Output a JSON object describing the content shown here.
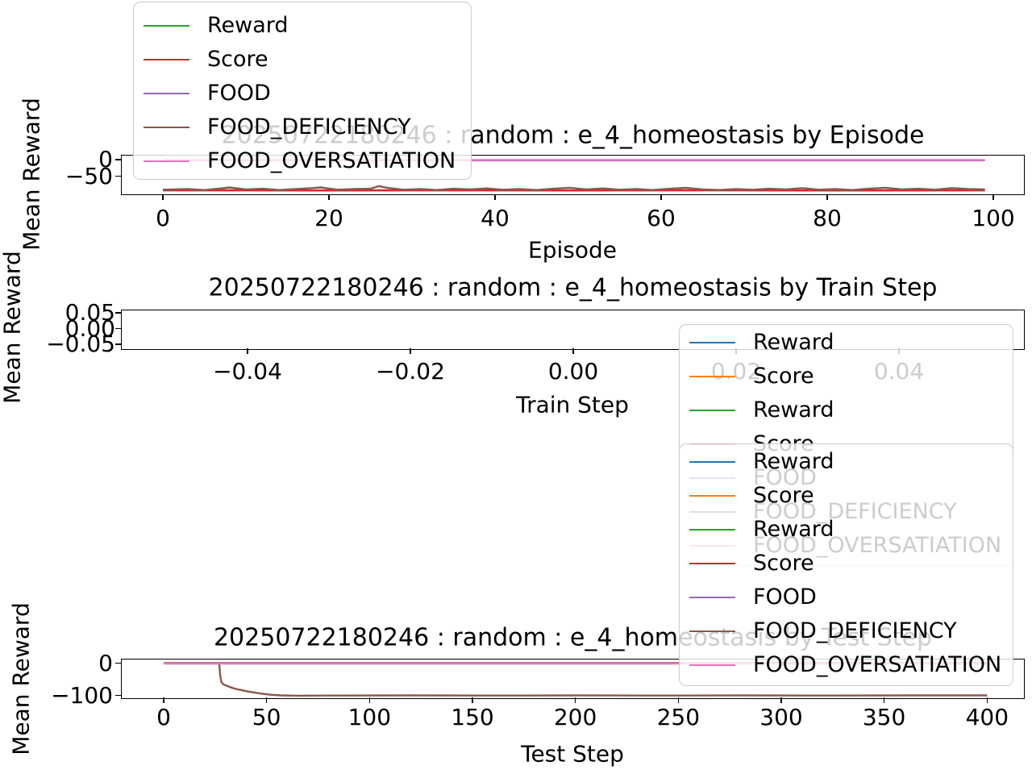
{
  "colors": {
    "blue": "#1f77b4",
    "orange": "#ff7f0e",
    "green": "#2ca02c",
    "red": "#d62728",
    "purple": "#9467bd",
    "brown": "#8c564b",
    "pink": "#e377c2",
    "spine": "#000000",
    "legend_border": "#cbcbcb",
    "faded_text": "#cccccc"
  },
  "chart_data": [
    {
      "type": "line",
      "title": "20250722180246 : random : e_4_homeostasis by Episode",
      "xlabel": "Episode",
      "ylabel": "Mean Reward",
      "xticklabels": [
        "0",
        "20",
        "40",
        "60",
        "80",
        "100"
      ],
      "yticklabels": [
        "0",
        "−50"
      ],
      "xticks": [
        0,
        20,
        40,
        60,
        80,
        100
      ],
      "yticks": [
        0,
        -50
      ],
      "xlim": [
        -5,
        104
      ],
      "ylim": [
        -102,
        12
      ],
      "grid": false,
      "series": [
        {
          "name": "Reward",
          "color": "#2ca02c",
          "points": [
            [
              0,
              -93
            ],
            [
              10,
              -92.5
            ],
            [
              20,
              -93.5
            ],
            [
              30,
              -93
            ],
            [
              40,
              -92.5
            ],
            [
              50,
              -93.5
            ],
            [
              60,
              -93
            ],
            [
              70,
              -92.5
            ],
            [
              80,
              -93.5
            ],
            [
              90,
              -93
            ],
            [
              99,
              -93
            ]
          ]
        },
        {
          "name": "Score",
          "color": "#d62728",
          "points": [
            [
              0,
              -92.6
            ],
            [
              15,
              -93.2
            ],
            [
              30,
              -92.6
            ],
            [
              45,
              -93.2
            ],
            [
              60,
              -92.6
            ],
            [
              75,
              -93.2
            ],
            [
              99,
              -92.8
            ]
          ]
        },
        {
          "name": "FOOD",
          "color": "#9467bd",
          "points": [
            [
              0,
              -2.2
            ],
            [
              99,
              -2.2
            ]
          ]
        },
        {
          "name": "FOOD_DEFICIENCY",
          "color": "#8c564b",
          "points": [
            [
              0,
              -91
            ],
            [
              3,
              -89
            ],
            [
              5,
              -92
            ],
            [
              7,
              -87
            ],
            [
              8,
              -84
            ],
            [
              10,
              -90
            ],
            [
              12,
              -88
            ],
            [
              14,
              -92
            ],
            [
              16,
              -89
            ],
            [
              18,
              -86
            ],
            [
              19,
              -84
            ],
            [
              21,
              -91
            ],
            [
              23,
              -89
            ],
            [
              25,
              -88
            ],
            [
              26,
              -80
            ],
            [
              27,
              -85
            ],
            [
              29,
              -91
            ],
            [
              31,
              -89
            ],
            [
              33,
              -92
            ],
            [
              35,
              -88
            ],
            [
              37,
              -90
            ],
            [
              39,
              -87
            ],
            [
              41,
              -91
            ],
            [
              43,
              -89
            ],
            [
              45,
              -92
            ],
            [
              47,
              -88
            ],
            [
              49,
              -85
            ],
            [
              51,
              -90
            ],
            [
              53,
              -87
            ],
            [
              55,
              -91
            ],
            [
              57,
              -89
            ],
            [
              59,
              -92
            ],
            [
              61,
              -88
            ],
            [
              63,
              -85
            ],
            [
              65,
              -90
            ],
            [
              67,
              -92
            ],
            [
              69,
              -89
            ],
            [
              71,
              -91
            ],
            [
              73,
              -88
            ],
            [
              75,
              -90
            ],
            [
              77,
              -86
            ],
            [
              79,
              -91
            ],
            [
              81,
              -89
            ],
            [
              83,
              -92
            ],
            [
              85,
              -88
            ],
            [
              87,
              -85
            ],
            [
              89,
              -90
            ],
            [
              91,
              -88
            ],
            [
              93,
              -91
            ],
            [
              95,
              -86
            ],
            [
              97,
              -89
            ],
            [
              99,
              -90
            ]
          ]
        },
        {
          "name": "FOOD_OVERSATIATION",
          "color": "#e377c2",
          "points": [
            [
              0,
              -1
            ],
            [
              99,
              -1
            ]
          ]
        }
      ]
    },
    {
      "type": "line",
      "title": "20250722180246 : random : e_4_homeostasis by Train Step",
      "xlabel": "Train Step",
      "ylabel": "Mean Reward",
      "xticklabels": [
        "−0.04",
        "−0.02",
        "0.00",
        "0.02",
        "0.04"
      ],
      "yticklabels": [
        "0.05",
        "0.00",
        "−0.05"
      ],
      "xticks": [
        -0.04,
        -0.02,
        0.0,
        0.02,
        0.04
      ],
      "yticks": [
        0.05,
        0.0,
        -0.05
      ],
      "xlim": [
        -0.055,
        0.055
      ],
      "ylim": [
        -0.055,
        0.055
      ],
      "grid": false,
      "series": []
    },
    {
      "type": "line",
      "title": "20250722180246 : random : e_4_homeostasis by Test Step",
      "xlabel": "Test Step",
      "ylabel": "Mean Reward",
      "xticklabels": [
        "0",
        "50",
        "100",
        "150",
        "200",
        "250",
        "300",
        "350",
        "400"
      ],
      "yticklabels": [
        "0",
        "−100"
      ],
      "xticks": [
        0,
        50,
        100,
        150,
        200,
        250,
        300,
        350,
        400
      ],
      "yticks": [
        0,
        -100
      ],
      "xlim": [
        -20,
        418
      ],
      "ylim": [
        -106,
        11
      ],
      "grid": false,
      "series": [
        {
          "name": "Reward",
          "color": "#1f77b4",
          "points": [
            [
              0,
              0
            ],
            [
              400,
              0
            ]
          ]
        },
        {
          "name": "Score",
          "color": "#ff7f0e",
          "points": [
            [
              0,
              0
            ],
            [
              400,
              0
            ]
          ]
        },
        {
          "name": "Reward",
          "color": "#2ca02c",
          "points": [
            [
              0,
              -0.3
            ],
            [
              400,
              -0.3
            ]
          ]
        },
        {
          "name": "Score",
          "color": "#d62728",
          "points": [
            [
              0,
              -0.3
            ],
            [
              400,
              -0.3
            ]
          ]
        },
        {
          "name": "FOOD",
          "color": "#9467bd",
          "points": [
            [
              0,
              -0.8
            ],
            [
              400,
              -0.8
            ]
          ]
        },
        {
          "name": "FOOD_DEFICIENCY",
          "color": "#8c564b",
          "points": [
            [
              0,
              -0.5
            ],
            [
              26,
              -0.5
            ],
            [
              27,
              -2
            ],
            [
              27.5,
              -40
            ],
            [
              28,
              -58
            ],
            [
              29,
              -66
            ],
            [
              31,
              -71
            ],
            [
              33,
              -76
            ],
            [
              35,
              -80
            ],
            [
              38,
              -84
            ],
            [
              41,
              -88
            ],
            [
              44,
              -91
            ],
            [
              48,
              -95
            ],
            [
              52,
              -98
            ],
            [
              57,
              -100
            ],
            [
              65,
              -101
            ],
            [
              80,
              -100.5
            ],
            [
              120,
              -100
            ],
            [
              160,
              -100.5
            ],
            [
              200,
              -100
            ],
            [
              240,
              -100.5
            ],
            [
              280,
              -100
            ],
            [
              320,
              -100.5
            ],
            [
              360,
              -100
            ],
            [
              400,
              -100
            ]
          ]
        },
        {
          "name": "FOOD_OVERSATIATION",
          "color": "#e377c2",
          "points": [
            [
              0,
              -1.2
            ],
            [
              400,
              -1.2
            ]
          ]
        }
      ]
    }
  ],
  "legends": {
    "top_left": {
      "entries": [
        {
          "label": "Reward",
          "color": "#2ca02c"
        },
        {
          "label": "Score",
          "color": "#d62728"
        },
        {
          "label": "FOOD",
          "color": "#9467bd"
        },
        {
          "label": "FOOD_DEFICIENCY",
          "color": "#8c564b"
        },
        {
          "label": "FOOD_OVERSATIATION",
          "color": "#e377c2"
        }
      ]
    },
    "right_upper": {
      "entries": [
        {
          "label": "Reward",
          "color": "#1f77b4"
        },
        {
          "label": "Score",
          "color": "#ff7f0e"
        },
        {
          "label": "Reward",
          "color": "#2ca02c"
        },
        {
          "label": "Score",
          "color": "#d62728"
        },
        {
          "label": "FOOD",
          "color": "#9467bd"
        },
        {
          "label": "FOOD_DEFICIENCY",
          "color": "#8c564b"
        },
        {
          "label": "FOOD_OVERSATIATION",
          "color": "#e377c2"
        }
      ]
    },
    "right_lower": {
      "entries": [
        {
          "label": "Reward",
          "color": "#1f77b4"
        },
        {
          "label": "Score",
          "color": "#ff7f0e"
        },
        {
          "label": "Reward",
          "color": "#2ca02c"
        },
        {
          "label": "Score",
          "color": "#d62728"
        },
        {
          "label": "FOOD",
          "color": "#9467bd"
        },
        {
          "label": "FOOD_DEFICIENCY",
          "color": "#8c564b"
        },
        {
          "label": "FOOD_OVERSATIATION",
          "color": "#e377c2"
        }
      ]
    }
  }
}
